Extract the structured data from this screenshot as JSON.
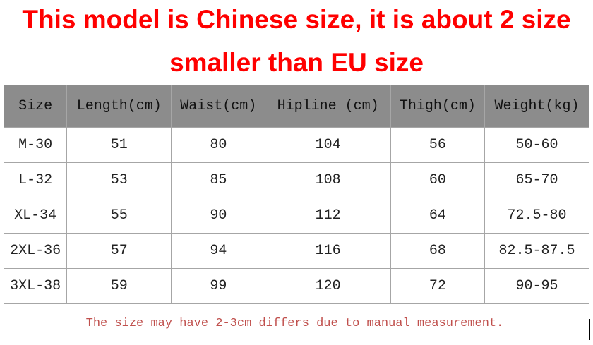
{
  "header": {
    "title_lines": [
      "This model is Chinese size, it is about 2 size",
      "smaller than EU size"
    ]
  },
  "table": {
    "columns": [
      "Size",
      "Length(cm)",
      "Waist(cm)",
      "Hipline (cm)",
      "Thigh(cm)",
      "Weight(kg)"
    ],
    "rows": [
      [
        "M-30",
        "51",
        "80",
        "104",
        "56",
        "50-60"
      ],
      [
        "L-32",
        "53",
        "85",
        "108",
        "60",
        "65-70"
      ],
      [
        "XL-34",
        "55",
        "90",
        "112",
        "64",
        "72.5-80"
      ],
      [
        "2XL-36",
        "57",
        "94",
        "116",
        "68",
        "82.5-87.5"
      ],
      [
        "3XL-38",
        "59",
        "99",
        "120",
        "72",
        "90-95"
      ]
    ]
  },
  "footer": {
    "note": "The size may have 2-3cm differs due to manual measurement."
  }
}
